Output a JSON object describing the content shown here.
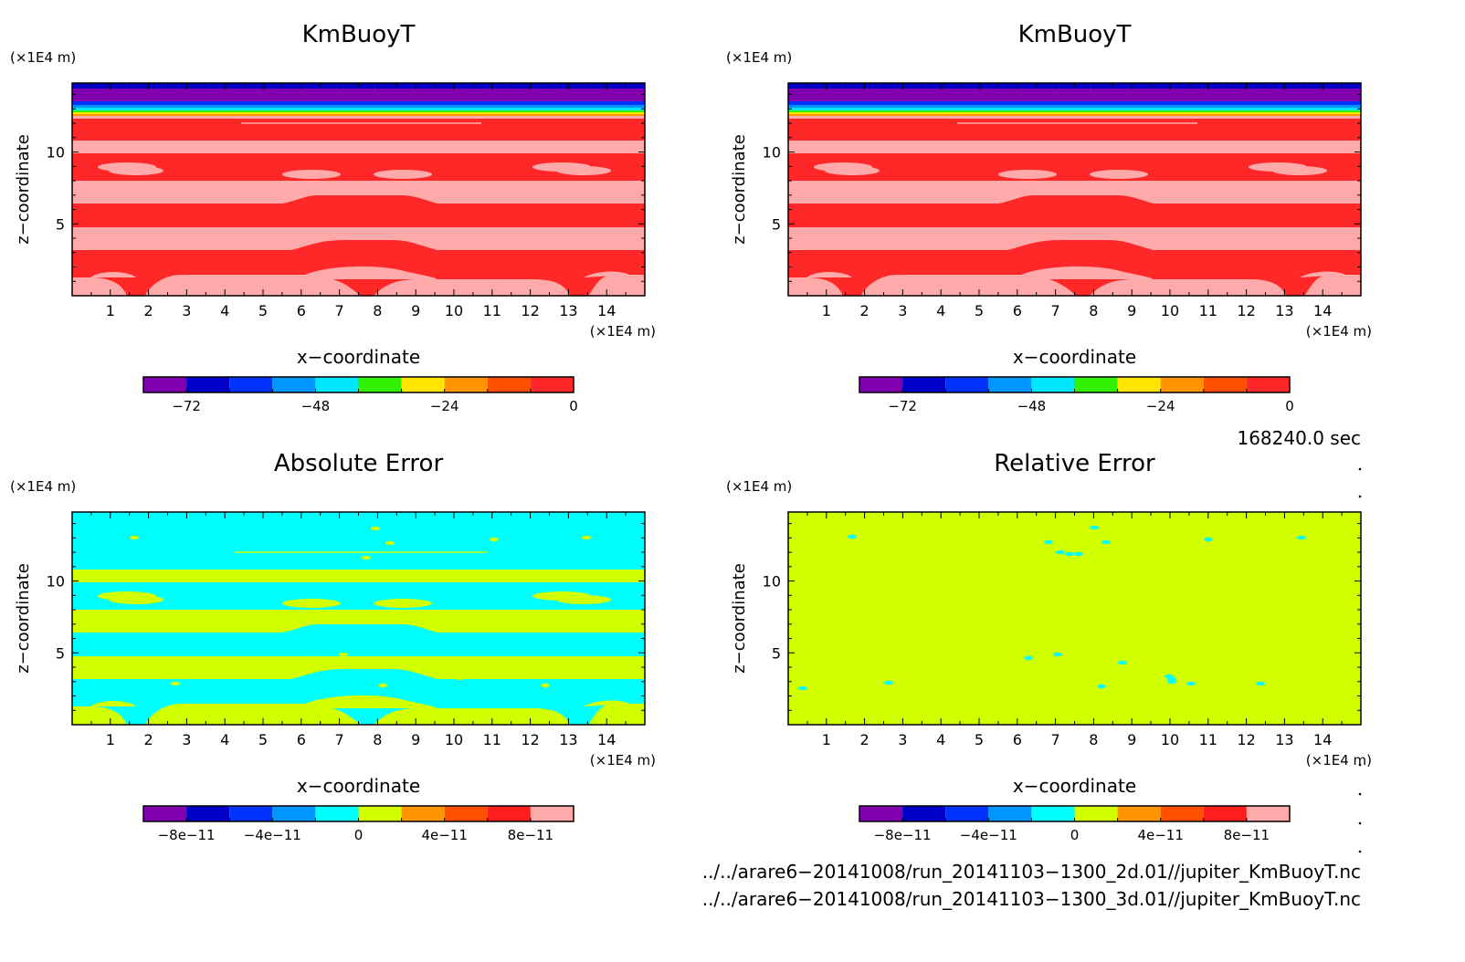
{
  "panels": [
    {
      "id": "tl",
      "title": "KmBuoyT",
      "z_unit": "(×1E4 m)",
      "x_unit": "(×1E4 m)",
      "xlabel": "x−coordinate",
      "ylabel": "z−coordinate",
      "x_ticks": [
        "1",
        "2",
        "3",
        "4",
        "5",
        "6",
        "7",
        "8",
        "9",
        "10",
        "11",
        "12",
        "13",
        "14"
      ],
      "z_ticks": [
        "5",
        "10"
      ],
      "field": "kmbuoyt",
      "colorbar": {
        "colors": [
          "#8000b0",
          "#0000c8",
          "#0032ff",
          "#0096ff",
          "#00e6ff",
          "#32f000",
          "#ffe600",
          "#ff9600",
          "#ff5000",
          "#ff2828"
        ],
        "labels": [
          "−72",
          "−48",
          "−24",
          "0"
        ],
        "label_at": [
          1,
          4,
          7,
          10
        ]
      }
    },
    {
      "id": "tr",
      "title": "KmBuoyT",
      "z_unit": "(×1E4 m)",
      "x_unit": "(×1E4 m)",
      "xlabel": "x−coordinate",
      "ylabel": "z−coordinate",
      "x_ticks": [
        "1",
        "2",
        "3",
        "4",
        "5",
        "6",
        "7",
        "8",
        "9",
        "10",
        "11",
        "12",
        "13",
        "14"
      ],
      "z_ticks": [
        "5",
        "10"
      ],
      "field": "kmbuoyt",
      "colorbar": {
        "colors": [
          "#8000b0",
          "#0000c8",
          "#0032ff",
          "#0096ff",
          "#00e6ff",
          "#32f000",
          "#ffe600",
          "#ff9600",
          "#ff5000",
          "#ff2828"
        ],
        "labels": [
          "−72",
          "−48",
          "−24",
          "0"
        ],
        "label_at": [
          1,
          4,
          7,
          10
        ]
      }
    },
    {
      "id": "bl",
      "title": "Absolute Error",
      "z_unit": "(×1E4 m)",
      "x_unit": "(×1E4 m)",
      "xlabel": "x−coordinate",
      "ylabel": "z−coordinate",
      "x_ticks": [
        "1",
        "2",
        "3",
        "4",
        "5",
        "6",
        "7",
        "8",
        "9",
        "10",
        "11",
        "12",
        "13",
        "14"
      ],
      "z_ticks": [
        "5",
        "10"
      ],
      "field": "abserr",
      "colorbar": {
        "colors": [
          "#8000b0",
          "#0000c8",
          "#0032ff",
          "#0096ff",
          "#00ffff",
          "#d2ff00",
          "#ff9600",
          "#ff5000",
          "#ff1e1e",
          "#ffaaaa"
        ],
        "labels": [
          "−8e−11",
          "−4e−11",
          "0",
          "4e−11",
          "8e−11"
        ],
        "label_at": [
          1,
          3,
          5,
          7,
          9
        ]
      }
    },
    {
      "id": "br",
      "title": "Relative Error",
      "z_unit": "(×1E4 m)",
      "x_unit": "(×1E4 m)",
      "xlabel": "x−coordinate",
      "ylabel": "z−coordinate",
      "x_ticks": [
        "1",
        "2",
        "3",
        "4",
        "5",
        "6",
        "7",
        "8",
        "9",
        "10",
        "11",
        "12",
        "13",
        "14"
      ],
      "z_ticks": [
        "5",
        "10"
      ],
      "field": "relerr",
      "colorbar": {
        "colors": [
          "#8000b0",
          "#0000c8",
          "#0032ff",
          "#0096ff",
          "#00ffff",
          "#d2ff00",
          "#ff9600",
          "#ff5000",
          "#ff1e1e",
          "#ffaaaa"
        ],
        "labels": [
          "−8e−11",
          "−4e−11",
          "0",
          "4e−11",
          "8e−11"
        ],
        "label_at": [
          1,
          3,
          5,
          7,
          9
        ]
      }
    }
  ],
  "time_label": "168240.0 sec",
  "file_paths": [
    "../../arare6−20141008/run_20141103−1300_2d.01//jupiter_KmBuoyT.nc",
    "../../arare6−20141008/run_20141103−1300_3d.01//jupiter_KmBuoyT.nc"
  ],
  "chart_data": [
    {
      "type": "heatmap",
      "title": "KmBuoyT",
      "xlabel": "x−coordinate (×1E4 m)",
      "ylabel": "z−coordinate (×1E4 m)",
      "x_range": [
        0,
        15
      ],
      "z_range": [
        0,
        14.8
      ],
      "color_levels": [
        -80,
        -72,
        -64,
        -56,
        -48,
        -40,
        -32,
        -24,
        -16,
        -8,
        0
      ],
      "colorbar_labels": [
        "−72",
        "−48",
        "−24",
        "0"
      ],
      "values": "alternating bands between about −8 and 0 below z≈12.5; decreasing to about −80 near the top boundary"
    },
    {
      "type": "heatmap",
      "title": "KmBuoyT",
      "xlabel": "x−coordinate (×1E4 m)",
      "ylabel": "z−coordinate (×1E4 m)",
      "x_range": [
        0,
        15
      ],
      "z_range": [
        0,
        14.8
      ],
      "color_levels": [
        -80,
        -72,
        -64,
        -56,
        -48,
        -40,
        -32,
        -24,
        -16,
        -8,
        0
      ],
      "colorbar_labels": [
        "−72",
        "−48",
        "−24",
        "0"
      ],
      "values": "identical to the left KmBuoyT panel"
    },
    {
      "type": "heatmap",
      "title": "Absolute Error",
      "xlabel": "x−coordinate (×1E4 m)",
      "ylabel": "z−coordinate (×1E4 m)",
      "x_range": [
        0,
        15
      ],
      "z_range": [
        0,
        14.8
      ],
      "color_levels": [
        -1e-10,
        -8e-11,
        -6e-11,
        -4e-11,
        -2e-11,
        0,
        2e-11,
        4e-11,
        6e-11,
        8e-11,
        1e-10
      ],
      "colorbar_labels": [
        "−8e−11",
        "−4e−11",
        "0",
        "4e−11",
        "8e−11"
      ],
      "values": "alternating bands of [−2e−11, 0] and [0, 2e−11]"
    },
    {
      "type": "heatmap",
      "title": "Relative Error",
      "xlabel": "x−coordinate (×1E4 m)",
      "ylabel": "z−coordinate (×1E4 m)",
      "x_range": [
        0,
        15
      ],
      "z_range": [
        0,
        14.8
      ],
      "color_levels": [
        -1e-10,
        -8e-11,
        -6e-11,
        -4e-11,
        -2e-11,
        0,
        2e-11,
        4e-11,
        6e-11,
        8e-11,
        1e-10
      ],
      "colorbar_labels": [
        "−8e−11",
        "−4e−11",
        "0",
        "4e−11",
        "8e−11"
      ],
      "values": "almost everywhere in [0, 2e−11], with isolated small spots in [−2e−11, 0]"
    }
  ]
}
